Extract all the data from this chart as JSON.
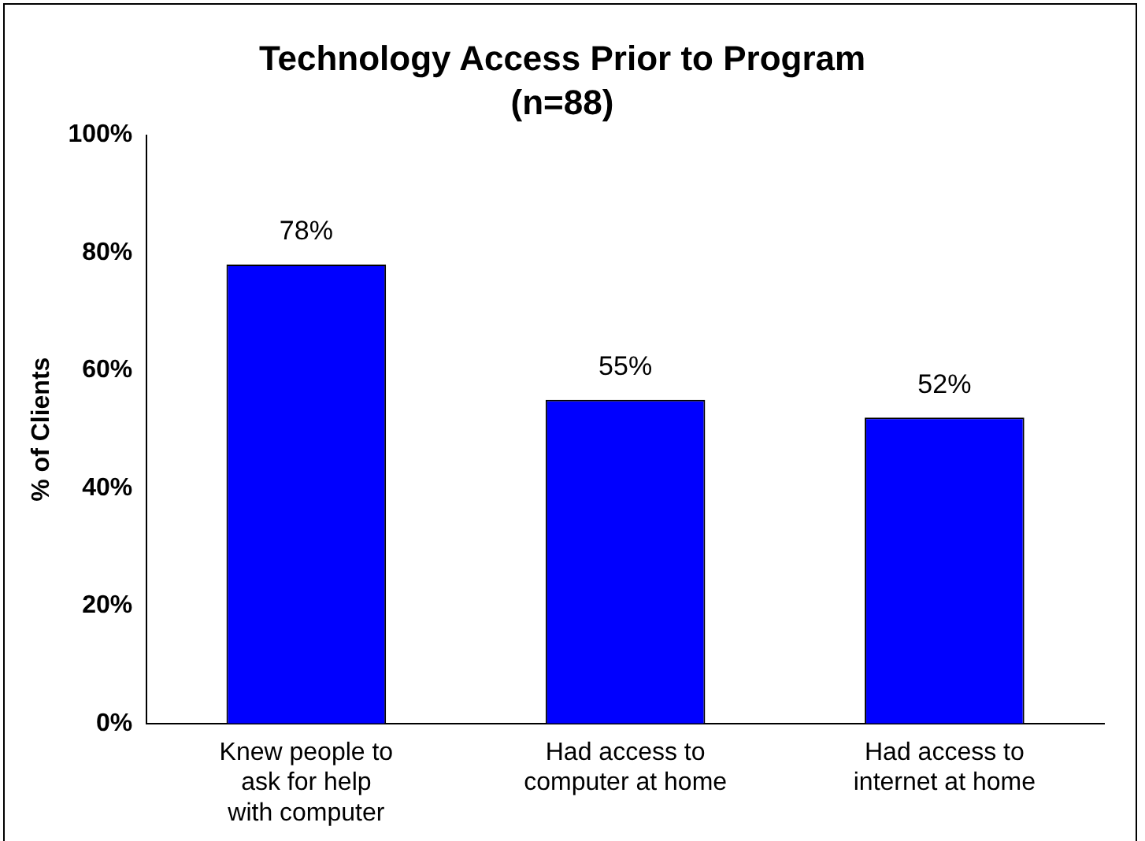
{
  "chart_data": {
    "type": "bar",
    "title": "Technology Access Prior to Program",
    "subtitle": "(n=88)",
    "ylabel": "% of Clients",
    "categories": [
      "Knew people to ask for help with computer",
      "Had access to computer at home",
      "Had access to internet at home"
    ],
    "values": [
      78,
      55,
      52
    ],
    "value_labels": [
      "78%",
      "55%",
      "52%"
    ],
    "color": "#0000ff",
    "ylim": [
      0,
      100
    ],
    "yticks": [
      {
        "value": 0,
        "label": "0%"
      },
      {
        "value": 20,
        "label": "20%"
      },
      {
        "value": 40,
        "label": "40%"
      },
      {
        "value": 60,
        "label": "60%"
      },
      {
        "value": 80,
        "label": "80%"
      },
      {
        "value": 100,
        "label": "100%"
      }
    ],
    "grid": false,
    "legend": false
  }
}
